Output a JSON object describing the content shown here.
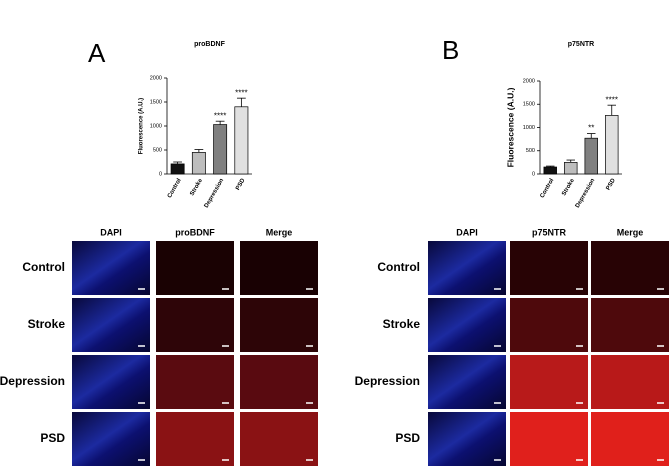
{
  "panels": [
    "A",
    "B"
  ],
  "micrographs": [
    {
      "columns": [
        "DAPI",
        "proBDNF",
        "Merge"
      ],
      "rows": [
        "Control",
        "Stroke",
        "Depression",
        "PSD"
      ]
    },
    {
      "columns": [
        "DAPI",
        "p75NTR",
        "Merge"
      ],
      "rows": [
        "Control",
        "Stroke",
        "Depression",
        "PSD"
      ]
    }
  ],
  "chart_data": [
    {
      "type": "bar",
      "title": "proBDNF",
      "y_label": "Fluorescence (A.U.)",
      "categories": [
        "Control",
        "Stroke",
        "Depression",
        "PSD"
      ],
      "values": [
        210,
        450,
        1030,
        1400
      ],
      "errors": [
        40,
        60,
        70,
        180
      ],
      "colors": [
        "#111111",
        "#bdbdbd",
        "#808080",
        "#e0e0e0"
      ],
      "annotations": [
        {
          "x": "Depression",
          "text": "****"
        },
        {
          "x": "PSD",
          "text": "****"
        }
      ],
      "ylim": [
        0,
        2000
      ],
      "yticks": [
        0,
        500,
        1000,
        1500,
        2000
      ]
    },
    {
      "type": "bar",
      "title": "p75NTR",
      "y_label": "Fluorescence (A.U.)",
      "categories": [
        "Control",
        "Stroke",
        "Depression",
        "PSD"
      ],
      "values": [
        150,
        250,
        770,
        1260
      ],
      "errors": [
        20,
        50,
        100,
        220
      ],
      "colors": [
        "#111111",
        "#bdbdbd",
        "#808080",
        "#e0e0e0"
      ],
      "annotations": [
        {
          "x": "Depression",
          "text": "**"
        },
        {
          "x": "PSD",
          "text": "****"
        }
      ],
      "ylim": [
        0,
        2000
      ],
      "yticks": [
        0,
        500,
        1000,
        1500,
        2000
      ]
    }
  ]
}
